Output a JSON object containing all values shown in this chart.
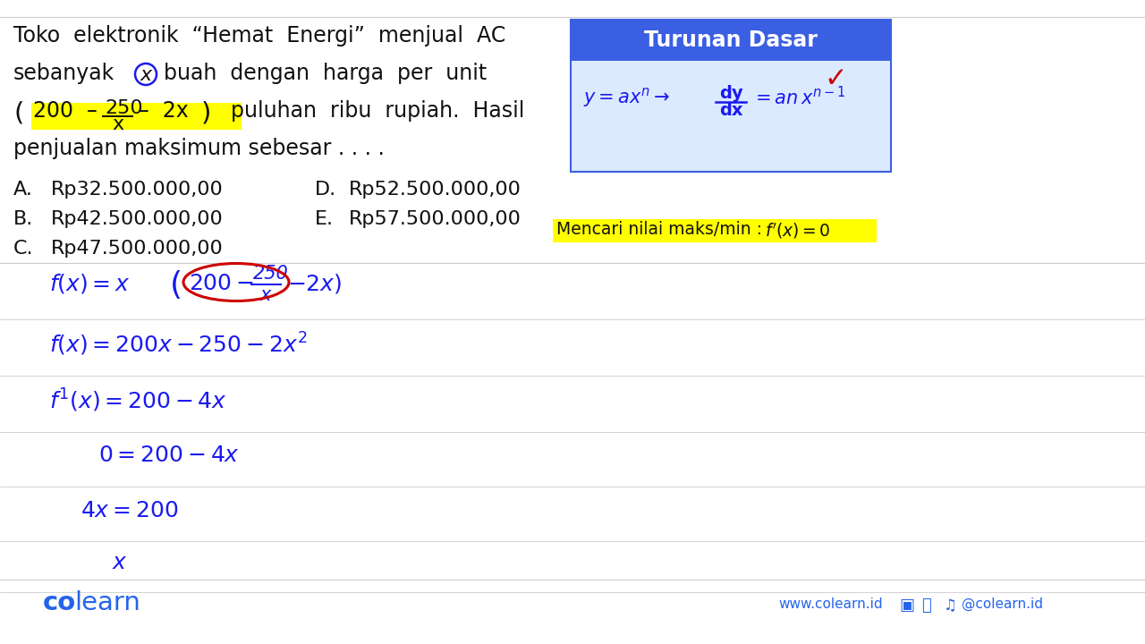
{
  "bg_color": "#ffffff",
  "text_dark": "#111111",
  "blue_text": "#1a1aee",
  "blue_header": "#3b5fe2",
  "blue_formula_bg": "#dbeafe",
  "yellow": "#ffff00",
  "red": "#cc0000",
  "gray_line": "#cccccc",
  "colearn_blue": "#2563eb",
  "circle_color": "#1a1aee",
  "problem_fs": 17,
  "option_fs": 16,
  "step_fs": 19,
  "box_title": "Turunan Dasar",
  "maks_label": "Mencari nilai maks/min : ",
  "footer_co": "co",
  "footer_learn": "learn",
  "footer_web": "www.colearn.id",
  "footer_at": "@colearn.id"
}
